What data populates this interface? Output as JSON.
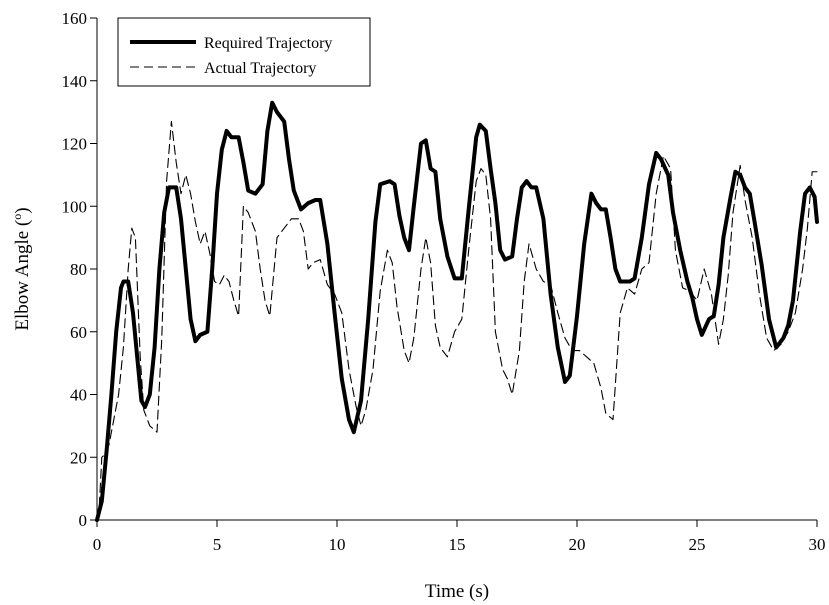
{
  "chart_data": {
    "type": "line",
    "xlabel": "Time (s)",
    "ylabel_main": "Elbow Angle (",
    "ylabel_sup": "o",
    "ylabel_end": ")",
    "xlim": [
      0,
      30
    ],
    "ylim": [
      0,
      160
    ],
    "xticks": [
      0,
      5,
      10,
      15,
      20,
      25,
      30
    ],
    "yticks": [
      0,
      20,
      40,
      60,
      80,
      100,
      120,
      140,
      160
    ],
    "grid": false,
    "legend_position": "top-left",
    "series": [
      {
        "name": "Required Trajectory",
        "style": "solid",
        "color": "#000000",
        "points": [
          [
            0,
            0
          ],
          [
            0.2,
            6
          ],
          [
            0.4,
            22
          ],
          [
            0.6,
            40
          ],
          [
            0.8,
            60
          ],
          [
            1.0,
            74
          ],
          [
            1.1,
            76
          ],
          [
            1.3,
            76
          ],
          [
            1.5,
            66
          ],
          [
            1.7,
            50
          ],
          [
            1.85,
            38
          ],
          [
            2.0,
            36
          ],
          [
            2.2,
            40
          ],
          [
            2.4,
            55
          ],
          [
            2.6,
            80
          ],
          [
            2.8,
            98
          ],
          [
            3.0,
            106
          ],
          [
            3.3,
            106
          ],
          [
            3.5,
            96
          ],
          [
            3.7,
            80
          ],
          [
            3.9,
            64
          ],
          [
            4.1,
            57
          ],
          [
            4.3,
            59
          ],
          [
            4.6,
            60
          ],
          [
            4.8,
            80
          ],
          [
            5.0,
            104
          ],
          [
            5.2,
            118
          ],
          [
            5.4,
            124
          ],
          [
            5.6,
            122
          ],
          [
            5.9,
            122
          ],
          [
            6.1,
            114
          ],
          [
            6.3,
            105
          ],
          [
            6.6,
            104
          ],
          [
            6.9,
            107
          ],
          [
            7.1,
            124
          ],
          [
            7.3,
            133
          ],
          [
            7.5,
            130
          ],
          [
            7.8,
            127
          ],
          [
            8.0,
            115
          ],
          [
            8.2,
            105
          ],
          [
            8.5,
            99
          ],
          [
            8.8,
            101
          ],
          [
            9.1,
            102
          ],
          [
            9.3,
            102
          ],
          [
            9.6,
            88
          ],
          [
            9.9,
            66
          ],
          [
            10.2,
            45
          ],
          [
            10.5,
            32
          ],
          [
            10.7,
            28
          ],
          [
            11.0,
            38
          ],
          [
            11.3,
            64
          ],
          [
            11.6,
            95
          ],
          [
            11.8,
            107
          ],
          [
            12.2,
            108
          ],
          [
            12.4,
            107
          ],
          [
            12.6,
            97
          ],
          [
            12.8,
            90
          ],
          [
            13.0,
            86
          ],
          [
            13.2,
            100
          ],
          [
            13.5,
            120
          ],
          [
            13.7,
            121
          ],
          [
            13.9,
            112
          ],
          [
            14.1,
            111
          ],
          [
            14.3,
            96
          ],
          [
            14.6,
            84
          ],
          [
            14.9,
            77
          ],
          [
            15.2,
            77
          ],
          [
            15.5,
            100
          ],
          [
            15.8,
            122
          ],
          [
            15.95,
            126
          ],
          [
            16.2,
            124
          ],
          [
            16.4,
            112
          ],
          [
            16.6,
            101
          ],
          [
            16.8,
            86
          ],
          [
            17.0,
            83
          ],
          [
            17.3,
            84
          ],
          [
            17.5,
            96
          ],
          [
            17.7,
            106
          ],
          [
            17.9,
            108
          ],
          [
            18.1,
            106
          ],
          [
            18.3,
            106
          ],
          [
            18.6,
            96
          ],
          [
            18.9,
            72
          ],
          [
            19.2,
            55
          ],
          [
            19.5,
            44
          ],
          [
            19.7,
            46
          ],
          [
            20.0,
            65
          ],
          [
            20.3,
            88
          ],
          [
            20.6,
            104
          ],
          [
            20.8,
            101
          ],
          [
            21.0,
            99
          ],
          [
            21.2,
            99
          ],
          [
            21.4,
            90
          ],
          [
            21.6,
            80
          ],
          [
            21.8,
            76
          ],
          [
            22.2,
            76
          ],
          [
            22.4,
            77
          ],
          [
            22.7,
            90
          ],
          [
            23.0,
            107
          ],
          [
            23.3,
            117
          ],
          [
            23.5,
            115
          ],
          [
            23.8,
            110
          ],
          [
            24.0,
            98
          ],
          [
            24.3,
            86
          ],
          [
            24.6,
            76
          ],
          [
            24.8,
            71
          ],
          [
            25.0,
            64
          ],
          [
            25.2,
            59
          ],
          [
            25.5,
            64
          ],
          [
            25.7,
            65
          ],
          [
            25.9,
            75
          ],
          [
            26.1,
            90
          ],
          [
            26.4,
            103
          ],
          [
            26.6,
            111
          ],
          [
            26.8,
            110
          ],
          [
            27.0,
            106
          ],
          [
            27.2,
            104
          ],
          [
            27.4,
            95
          ],
          [
            27.7,
            81
          ],
          [
            28.0,
            64
          ],
          [
            28.3,
            55
          ],
          [
            28.6,
            58
          ],
          [
            28.8,
            62
          ],
          [
            29.0,
            70
          ],
          [
            29.3,
            92
          ],
          [
            29.5,
            104
          ],
          [
            29.7,
            106
          ],
          [
            29.9,
            103
          ],
          [
            30.0,
            95
          ]
        ]
      },
      {
        "name": "Actual Trajectory",
        "style": "dashed",
        "color": "#000000",
        "points": [
          [
            0,
            0
          ],
          [
            0.1,
            5
          ],
          [
            0.2,
            20
          ],
          [
            0.35,
            21
          ],
          [
            0.5,
            24
          ],
          [
            0.7,
            32
          ],
          [
            0.9,
            40
          ],
          [
            1.1,
            55
          ],
          [
            1.3,
            80
          ],
          [
            1.45,
            93
          ],
          [
            1.6,
            90
          ],
          [
            1.8,
            52
          ],
          [
            1.95,
            35
          ],
          [
            2.2,
            30
          ],
          [
            2.5,
            28
          ],
          [
            2.7,
            58
          ],
          [
            2.9,
            108
          ],
          [
            3.1,
            127
          ],
          [
            3.3,
            114
          ],
          [
            3.5,
            104
          ],
          [
            3.7,
            110
          ],
          [
            3.9,
            104
          ],
          [
            4.1,
            95
          ],
          [
            4.3,
            88
          ],
          [
            4.5,
            92
          ],
          [
            4.7,
            85
          ],
          [
            4.9,
            76
          ],
          [
            5.1,
            75
          ],
          [
            5.3,
            78
          ],
          [
            5.5,
            76
          ],
          [
            5.7,
            70
          ],
          [
            5.9,
            65
          ],
          [
            6.1,
            100
          ],
          [
            6.3,
            98
          ],
          [
            6.6,
            92
          ],
          [
            6.8,
            80
          ],
          [
            7.0,
            70
          ],
          [
            7.2,
            65
          ],
          [
            7.5,
            90
          ],
          [
            7.8,
            93
          ],
          [
            8.1,
            96
          ],
          [
            8.4,
            96
          ],
          [
            8.6,
            92
          ],
          [
            8.8,
            80
          ],
          [
            9.0,
            82
          ],
          [
            9.3,
            83
          ],
          [
            9.6,
            75
          ],
          [
            9.9,
            72
          ],
          [
            10.2,
            66
          ],
          [
            10.5,
            48
          ],
          [
            10.8,
            36
          ],
          [
            11.0,
            30
          ],
          [
            11.2,
            35
          ],
          [
            11.5,
            48
          ],
          [
            11.8,
            73
          ],
          [
            12.1,
            86
          ],
          [
            12.3,
            82
          ],
          [
            12.5,
            68
          ],
          [
            12.8,
            54
          ],
          [
            13.0,
            50
          ],
          [
            13.2,
            58
          ],
          [
            13.5,
            80
          ],
          [
            13.7,
            90
          ],
          [
            13.9,
            82
          ],
          [
            14.1,
            62
          ],
          [
            14.3,
            55
          ],
          [
            14.6,
            52
          ],
          [
            14.9,
            60
          ],
          [
            15.2,
            64
          ],
          [
            15.5,
            87
          ],
          [
            15.8,
            108
          ],
          [
            16.0,
            112
          ],
          [
            16.2,
            110
          ],
          [
            16.4,
            96
          ],
          [
            16.6,
            60
          ],
          [
            16.9,
            48
          ],
          [
            17.1,
            45
          ],
          [
            17.3,
            40
          ],
          [
            17.6,
            54
          ],
          [
            17.8,
            76
          ],
          [
            18.0,
            88
          ],
          [
            18.3,
            80
          ],
          [
            18.6,
            76
          ],
          [
            18.9,
            75
          ],
          [
            19.2,
            66
          ],
          [
            19.5,
            58
          ],
          [
            19.8,
            54
          ],
          [
            20.1,
            54
          ],
          [
            20.4,
            52
          ],
          [
            20.7,
            50
          ],
          [
            21.0,
            42
          ],
          [
            21.2,
            34
          ],
          [
            21.5,
            32
          ],
          [
            21.8,
            66
          ],
          [
            22.1,
            74
          ],
          [
            22.4,
            72
          ],
          [
            22.7,
            80
          ],
          [
            23.0,
            82
          ],
          [
            23.3,
            104
          ],
          [
            23.6,
            116
          ],
          [
            23.9,
            112
          ],
          [
            24.1,
            86
          ],
          [
            24.4,
            74
          ],
          [
            24.7,
            73
          ],
          [
            25.0,
            70
          ],
          [
            25.3,
            80
          ],
          [
            25.6,
            72
          ],
          [
            25.9,
            56
          ],
          [
            26.1,
            64
          ],
          [
            26.3,
            78
          ],
          [
            26.5,
            98
          ],
          [
            26.8,
            113
          ],
          [
            27.0,
            102
          ],
          [
            27.3,
            90
          ],
          [
            27.6,
            72
          ],
          [
            27.9,
            58
          ],
          [
            28.2,
            54
          ],
          [
            28.5,
            56
          ],
          [
            28.8,
            60
          ],
          [
            29.1,
            66
          ],
          [
            29.4,
            80
          ],
          [
            29.6,
            93
          ],
          [
            29.8,
            111
          ],
          [
            30.0,
            111
          ]
        ]
      }
    ]
  }
}
